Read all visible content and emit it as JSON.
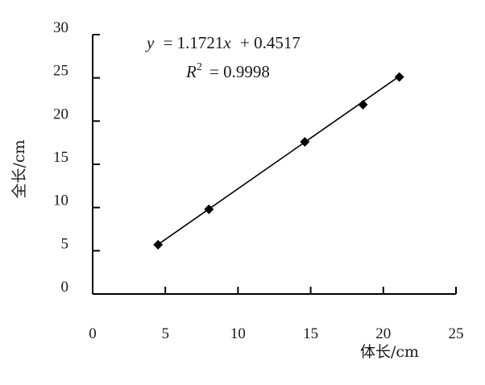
{
  "chart_data": {
    "type": "scatter",
    "xlabel": "体长/cm",
    "ylabel": "全长/cm",
    "xlim": [
      0,
      25
    ],
    "ylim": [
      0,
      30
    ],
    "xticks": [
      0,
      5,
      10,
      15,
      20,
      25
    ],
    "yticks": [
      0,
      5,
      10,
      15,
      20,
      25,
      30
    ],
    "grid": false,
    "marker": "diamond",
    "color": "#000000",
    "points": [
      {
        "x": 4.5,
        "y": 5.7
      },
      {
        "x": 8.0,
        "y": 9.8
      },
      {
        "x": 14.6,
        "y": 17.6
      },
      {
        "x": 18.6,
        "y": 21.9
      },
      {
        "x": 21.1,
        "y": 25.1
      }
    ],
    "trendline": {
      "slope": 1.1721,
      "intercept": 0.4517,
      "equation_lhs": "y",
      "equation_rhs": "= 1.1721",
      "equation_var": "x",
      "equation_tail": "+ 0.4517",
      "r2_symbol": "R",
      "r2_sup": "2",
      "r2_value": "= 0.9998"
    }
  }
}
